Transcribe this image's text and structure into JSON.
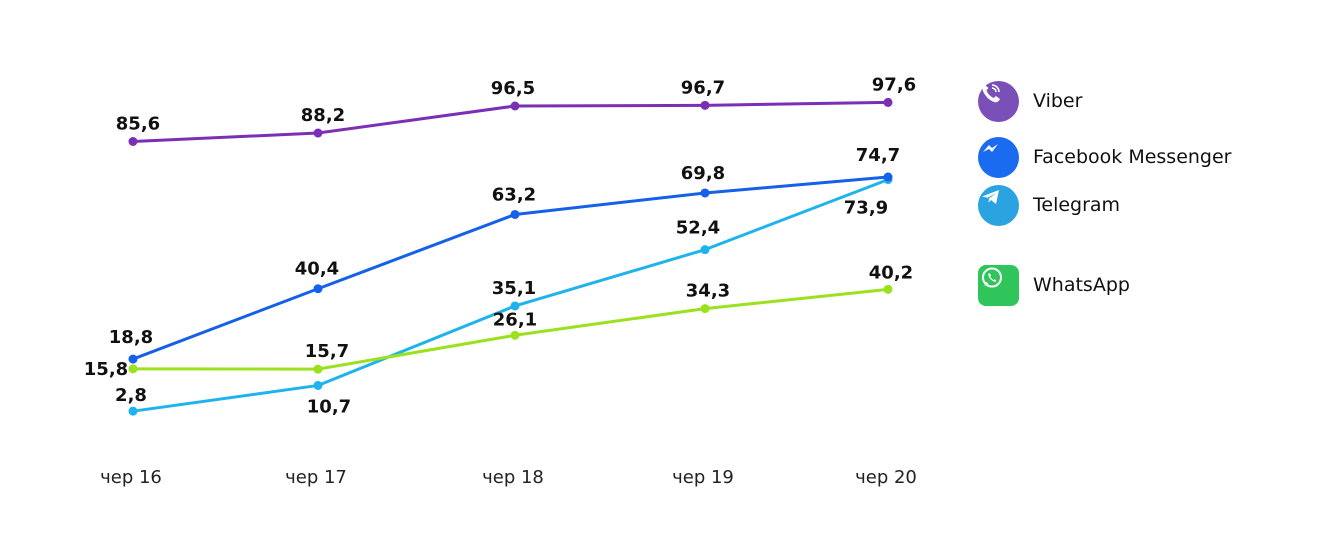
{
  "chart_data": {
    "type": "line",
    "categories": [
      "чер 16",
      "чер 17",
      "чер 18",
      "чер 19",
      "чер 20"
    ],
    "ylim": [
      0,
      100
    ],
    "grid": false,
    "legend_position": "right",
    "series": [
      {
        "name": "Viber",
        "color": "#7B2FB4",
        "values": [
          85.6,
          88.2,
          96.5,
          96.7,
          97.6
        ],
        "labels": [
          "85,6",
          "88,2",
          "96,5",
          "96,7",
          "97,6"
        ],
        "icon": "viber-icon"
      },
      {
        "name": "Facebook Messenger",
        "color": "#1560E8",
        "values": [
          18.8,
          40.4,
          63.2,
          69.8,
          74.7
        ],
        "labels": [
          "18,8",
          "40,4",
          "63,2",
          "69,8",
          "74,7"
        ],
        "icon": "messenger-icon"
      },
      {
        "name": "Telegram",
        "color": "#1FB3EE",
        "values": [
          2.8,
          10.7,
          35.1,
          52.4,
          73.9
        ],
        "labels": [
          "2,8",
          "10,7",
          "35,1",
          "52,4",
          "73,9"
        ],
        "icon": "telegram-icon"
      },
      {
        "name": "WhatsApp",
        "color": "#9BE11E",
        "values": [
          15.8,
          15.7,
          26.1,
          34.3,
          40.2
        ],
        "labels": [
          "15,8",
          "15,7",
          "26,1",
          "34,3",
          "40,2"
        ],
        "icon": "whatsapp-icon"
      }
    ]
  }
}
